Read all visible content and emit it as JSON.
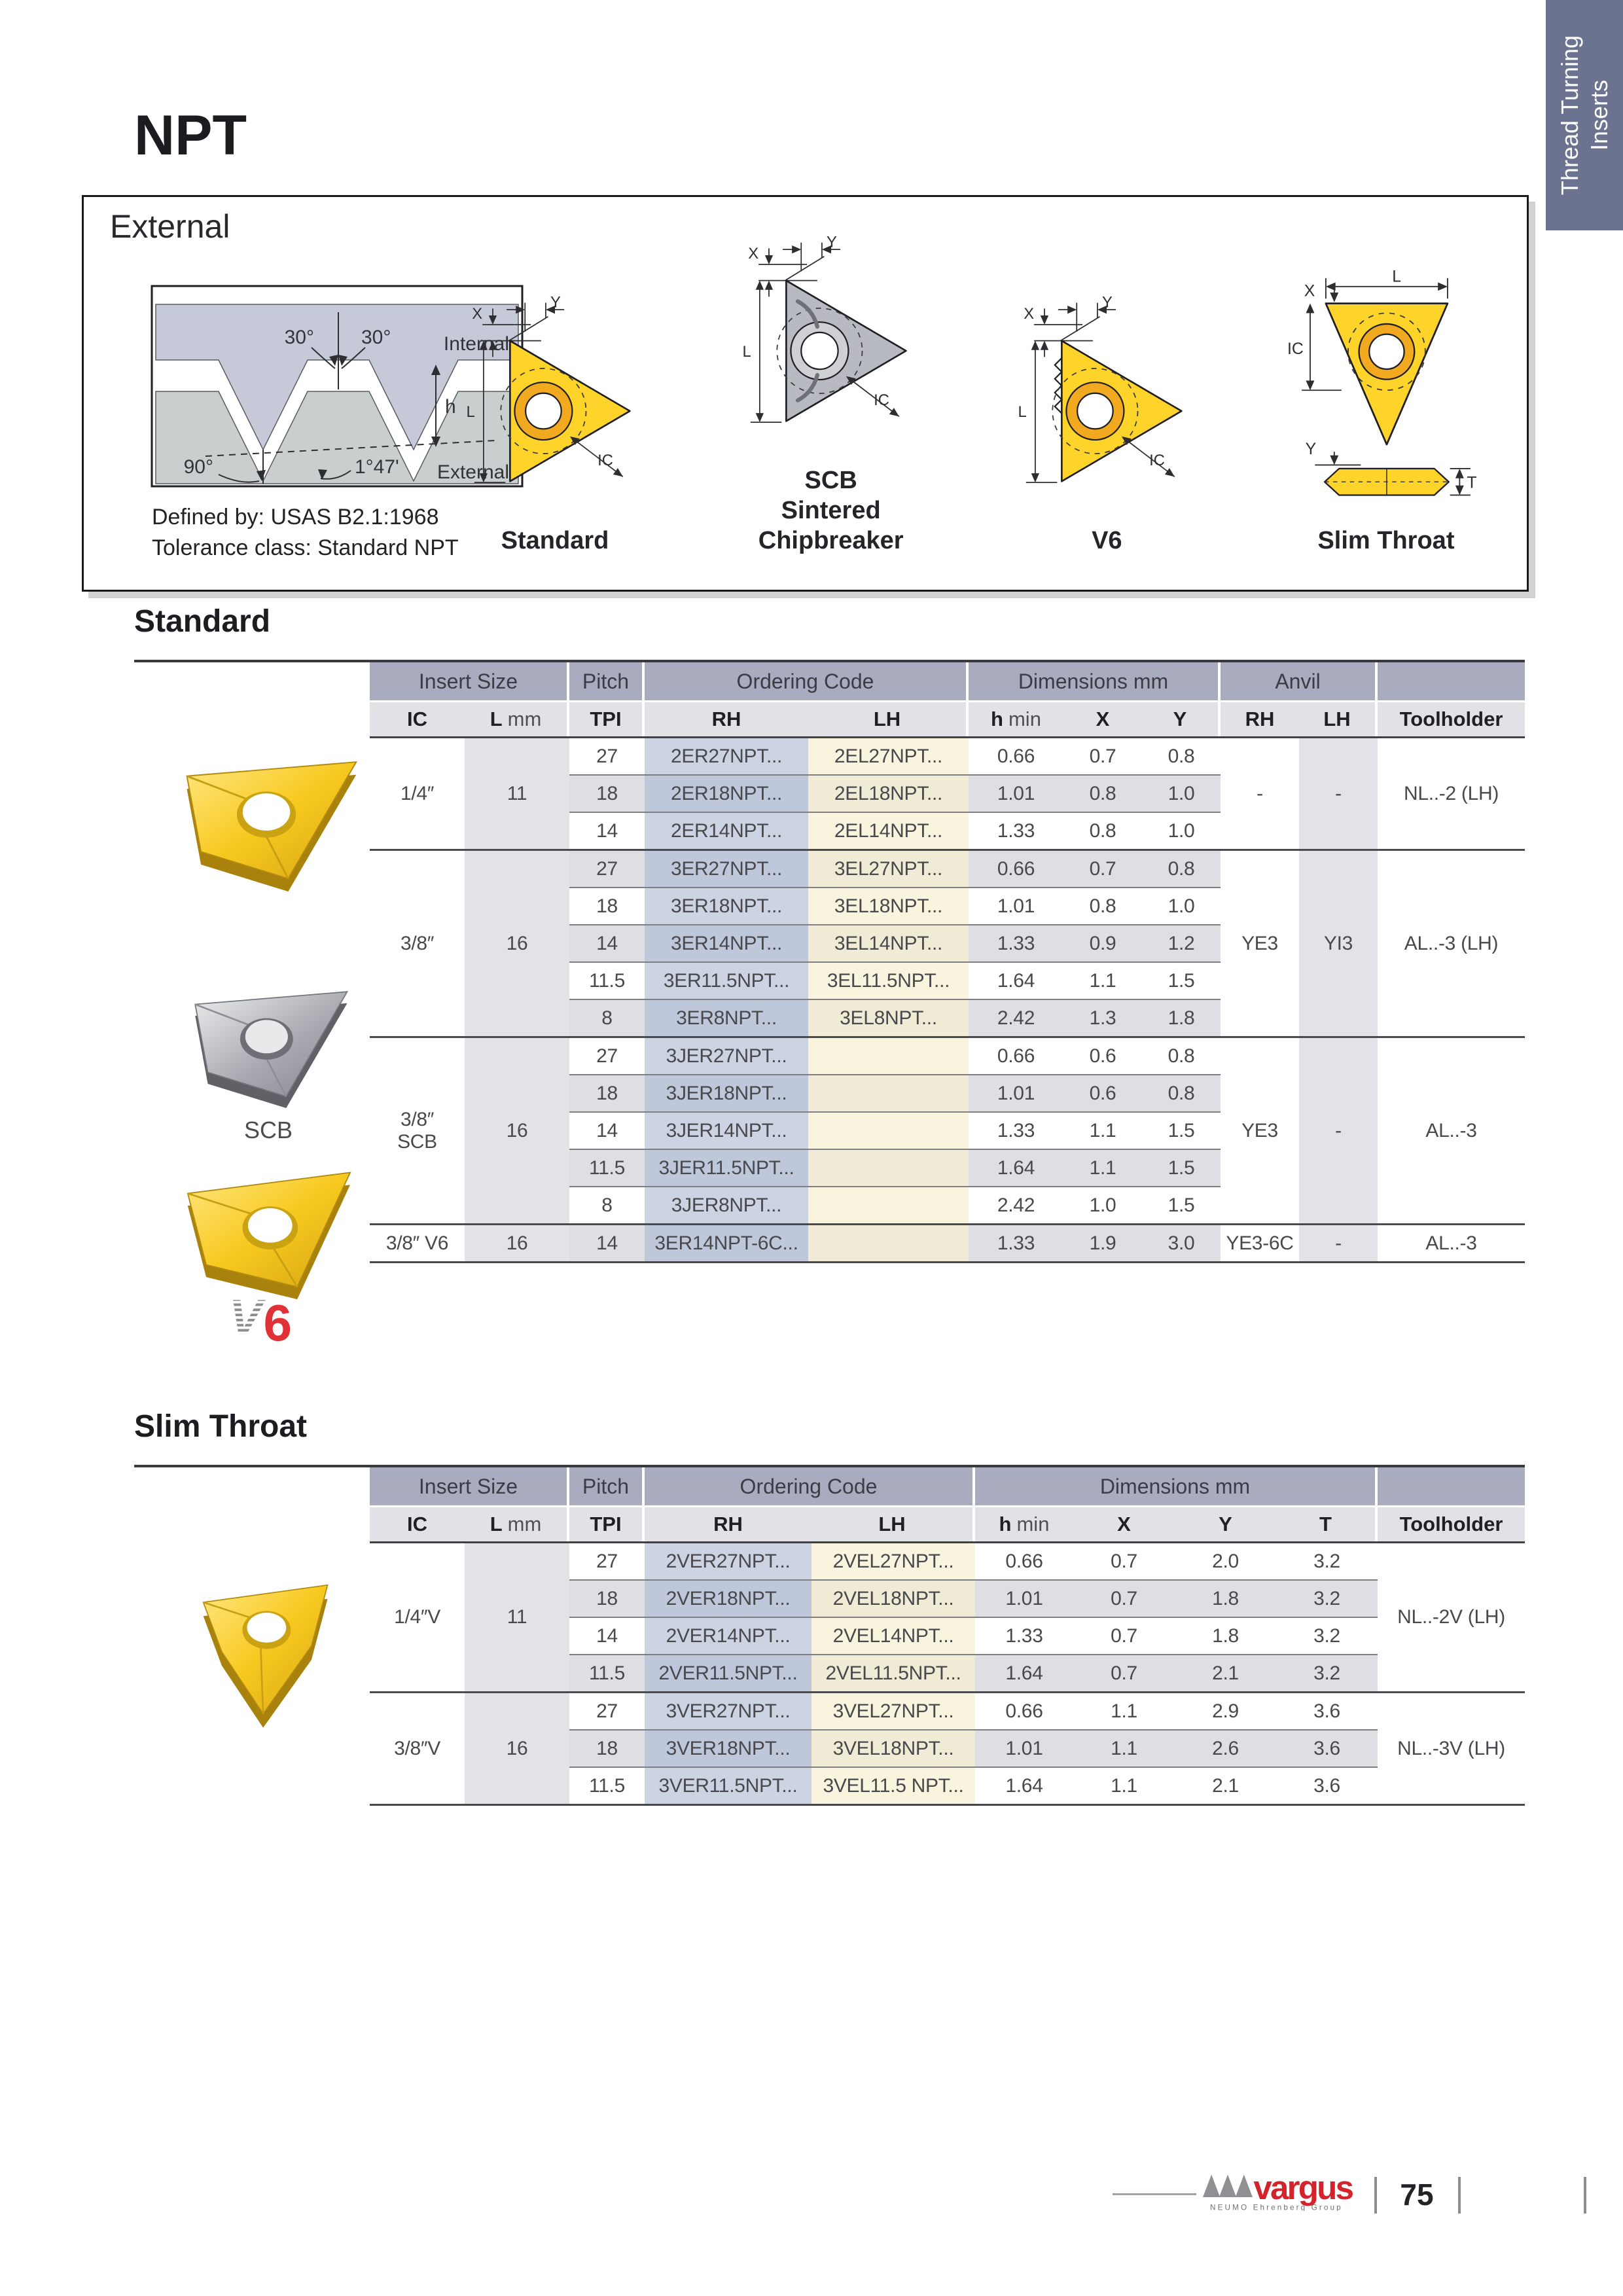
{
  "page": {
    "side_tab": {
      "line1": "Thread Turning",
      "line2": "Inserts"
    },
    "title": "NPT",
    "footer": {
      "brand": "vargus",
      "brand_sub": "NEUMO Ehrenberg Group",
      "page_number": "75"
    }
  },
  "colors": {
    "accent_red": "#d4232a",
    "tab_blue": "#6b7390",
    "band_blue": "#a9abbe",
    "code_rh_tint": "#ccd3e2",
    "code_lh_tint": "#f8f4dd",
    "insert_yellow": "#f7c91f"
  },
  "external_box": {
    "title": "External",
    "defined_by": "Defined by: USAS B2.1:1968",
    "tolerance": "Tolerance class: Standard NPT",
    "thread_diagram": {
      "angle_left": "30°",
      "angle_right": "30°",
      "internal": "Internal",
      "height": "h",
      "angle_bottom": "90°",
      "taper": "1°47'",
      "external": "External"
    },
    "diagrams": [
      {
        "caption": [
          "Standard"
        ],
        "dims": {
          "x": "X",
          "y": "Y",
          "l": "L",
          "ic": "IC"
        }
      },
      {
        "caption": [
          "SCB",
          "Sintered",
          "Chipbreaker"
        ],
        "dims": {
          "x": "X",
          "y": "Y",
          "l": "L",
          "ic": "IC"
        }
      },
      {
        "caption": [
          "V6"
        ],
        "dims": {
          "x": "X",
          "y": "Y",
          "l": "L",
          "ic": "IC"
        }
      },
      {
        "caption": [
          "Slim Throat"
        ],
        "dims": {
          "x": "X",
          "y": "Y",
          "l": "L",
          "ic": "IC",
          "t": "T"
        }
      }
    ]
  },
  "photos": {
    "scb_label": "SCB",
    "v6_logo": {
      "v": "V",
      "six": "6"
    }
  },
  "standard_table": {
    "title": "Standard",
    "band1": [
      "Insert Size",
      "Pitch",
      "Ordering Code",
      "Dimensions mm",
      "Anvil",
      ""
    ],
    "band2": [
      "IC",
      "L mm",
      "TPI",
      "RH",
      "LH",
      "h min",
      "X",
      "Y",
      "RH",
      "LH",
      "Toolholder"
    ],
    "groups": [
      {
        "ic": "1/4″",
        "l": "11",
        "anvil_rh": "-",
        "anvil_lh": "-",
        "toolholder": "NL..-2 (LH)",
        "rows": [
          {
            "tpi": "27",
            "rh": "2ER27NPT...",
            "lh": "2EL27NPT...",
            "h": "0.66",
            "x": "0.7",
            "y": "0.8"
          },
          {
            "tpi": "18",
            "rh": "2ER18NPT...",
            "lh": "2EL18NPT...",
            "h": "1.01",
            "x": "0.8",
            "y": "1.0"
          },
          {
            "tpi": "14",
            "rh": "2ER14NPT...",
            "lh": "2EL14NPT...",
            "h": "1.33",
            "x": "0.8",
            "y": "1.0"
          }
        ]
      },
      {
        "ic": "3/8″",
        "l": "16",
        "anvil_rh": "YE3",
        "anvil_lh": "YI3",
        "toolholder": "AL..-3 (LH)",
        "rows": [
          {
            "tpi": "27",
            "rh": "3ER27NPT...",
            "lh": "3EL27NPT...",
            "h": "0.66",
            "x": "0.7",
            "y": "0.8"
          },
          {
            "tpi": "18",
            "rh": "3ER18NPT...",
            "lh": "3EL18NPT...",
            "h": "1.01",
            "x": "0.8",
            "y": "1.0"
          },
          {
            "tpi": "14",
            "rh": "3ER14NPT...",
            "lh": "3EL14NPT...",
            "h": "1.33",
            "x": "0.9",
            "y": "1.2"
          },
          {
            "tpi": "11.5",
            "rh": "3ER11.5NPT...",
            "lh": "3EL11.5NPT...",
            "h": "1.64",
            "x": "1.1",
            "y": "1.5"
          },
          {
            "tpi": "8",
            "rh": "3ER8NPT...",
            "lh": "3EL8NPT...",
            "h": "2.42",
            "x": "1.3",
            "y": "1.8"
          }
        ]
      },
      {
        "ic": "3/8″\nSCB",
        "l": "16",
        "anvil_rh": "YE3",
        "anvil_lh": "-",
        "toolholder": "AL..-3",
        "rows": [
          {
            "tpi": "27",
            "rh": "3JER27NPT...",
            "lh": "",
            "h": "0.66",
            "x": "0.6",
            "y": "0.8"
          },
          {
            "tpi": "18",
            "rh": "3JER18NPT...",
            "lh": "",
            "h": "1.01",
            "x": "0.6",
            "y": "0.8"
          },
          {
            "tpi": "14",
            "rh": "3JER14NPT...",
            "lh": "",
            "h": "1.33",
            "x": "1.1",
            "y": "1.5"
          },
          {
            "tpi": "11.5",
            "rh": "3JER11.5NPT...",
            "lh": "",
            "h": "1.64",
            "x": "1.1",
            "y": "1.5"
          },
          {
            "tpi": "8",
            "rh": "3JER8NPT...",
            "lh": "",
            "h": "2.42",
            "x": "1.0",
            "y": "1.5"
          }
        ]
      },
      {
        "ic": "3/8″ V6",
        "l": "16",
        "anvil_rh": "YE3-6C",
        "anvil_lh": "-",
        "toolholder": "AL..-3",
        "rows": [
          {
            "tpi": "14",
            "rh": "3ER14NPT-6C...",
            "lh": "",
            "h": "1.33",
            "x": "1.9",
            "y": "3.0"
          }
        ]
      }
    ]
  },
  "slim_table": {
    "title": "Slim Throat",
    "band1": [
      "Insert Size",
      "Pitch",
      "Ordering Code",
      "Dimensions mm",
      ""
    ],
    "band2": [
      "IC",
      "L mm",
      "TPI",
      "RH",
      "LH",
      "h min",
      "X",
      "Y",
      "T",
      "Toolholder"
    ],
    "groups": [
      {
        "ic": "1/4″V",
        "l": "11",
        "toolholder": "NL..-2V (LH)",
        "rows": [
          {
            "tpi": "27",
            "rh": "2VER27NPT...",
            "lh": "2VEL27NPT...",
            "h": "0.66",
            "x": "0.7",
            "y": "2.0",
            "t": "3.2"
          },
          {
            "tpi": "18",
            "rh": "2VER18NPT...",
            "lh": "2VEL18NPT...",
            "h": "1.01",
            "x": "0.7",
            "y": "1.8",
            "t": "3.2"
          },
          {
            "tpi": "14",
            "rh": "2VER14NPT...",
            "lh": "2VEL14NPT...",
            "h": "1.33",
            "x": "0.7",
            "y": "1.8",
            "t": "3.2"
          },
          {
            "tpi": "11.5",
            "rh": "2VER11.5NPT...",
            "lh": "2VEL11.5NPT...",
            "h": "1.64",
            "x": "0.7",
            "y": "2.1",
            "t": "3.2"
          }
        ]
      },
      {
        "ic": "3/8″V",
        "l": "16",
        "toolholder": "NL..-3V (LH)",
        "rows": [
          {
            "tpi": "27",
            "rh": "3VER27NPT...",
            "lh": "3VEL27NPT...",
            "h": "0.66",
            "x": "1.1",
            "y": "2.9",
            "t": "3.6"
          },
          {
            "tpi": "18",
            "rh": "3VER18NPT...",
            "lh": "3VEL18NPT...",
            "h": "1.01",
            "x": "1.1",
            "y": "2.6",
            "t": "3.6"
          },
          {
            "tpi": "11.5",
            "rh": "3VER11.5NPT...",
            "lh": "3VEL11.5 NPT...",
            "h": "1.64",
            "x": "1.1",
            "y": "2.1",
            "t": "3.6"
          }
        ]
      }
    ]
  }
}
